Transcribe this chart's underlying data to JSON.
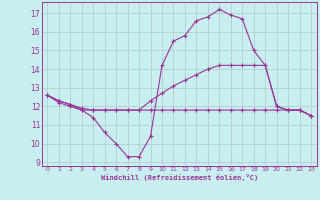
{
  "xlabel": "Windchill (Refroidissement éolien,°C)",
  "background_color": "#c8eef0",
  "grid_color": "#b0c8cc",
  "line_color": "#993399",
  "ylim": [
    8.8,
    17.6
  ],
  "xlim": [
    -0.5,
    23.5
  ],
  "yticks": [
    9,
    10,
    11,
    12,
    13,
    14,
    15,
    16,
    17
  ],
  "xticks": [
    0,
    1,
    2,
    3,
    4,
    5,
    6,
    7,
    8,
    9,
    10,
    11,
    12,
    13,
    14,
    15,
    16,
    17,
    18,
    19,
    20,
    21,
    22,
    23
  ],
  "series": [
    {
      "x": [
        0,
        1,
        2,
        3,
        4,
        5,
        6,
        7,
        8,
        9,
        10,
        11,
        12,
        13,
        14,
        15,
        16,
        17,
        18,
        19,
        20,
        21,
        22,
        23
      ],
      "y": [
        12.6,
        12.3,
        12.1,
        11.8,
        11.4,
        10.6,
        10.0,
        9.3,
        9.3,
        10.4,
        14.2,
        15.5,
        15.8,
        16.6,
        16.8,
        17.2,
        16.9,
        16.7,
        15.0,
        14.2,
        12.0,
        11.8,
        11.8,
        11.5
      ]
    },
    {
      "x": [
        0,
        1,
        2,
        3,
        4,
        5,
        6,
        7,
        8,
        9,
        10,
        11,
        12,
        13,
        14,
        15,
        16,
        17,
        18,
        19,
        20,
        21,
        22,
        23
      ],
      "y": [
        12.6,
        12.2,
        12.0,
        11.8,
        11.8,
        11.8,
        11.8,
        11.8,
        11.8,
        11.8,
        11.8,
        11.8,
        11.8,
        11.8,
        11.8,
        11.8,
        11.8,
        11.8,
        11.8,
        11.8,
        11.8,
        11.8,
        11.8,
        11.5
      ]
    },
    {
      "x": [
        0,
        1,
        2,
        3,
        4,
        5,
        6,
        7,
        8,
        9,
        10,
        11,
        12,
        13,
        14,
        15,
        16,
        17,
        18,
        19,
        20,
        21,
        22,
        23
      ],
      "y": [
        12.6,
        12.3,
        12.1,
        11.9,
        11.8,
        11.8,
        11.8,
        11.8,
        11.8,
        12.3,
        12.7,
        13.1,
        13.4,
        13.7,
        14.0,
        14.2,
        14.2,
        14.2,
        14.2,
        14.2,
        12.0,
        11.8,
        11.8,
        11.5
      ]
    }
  ]
}
